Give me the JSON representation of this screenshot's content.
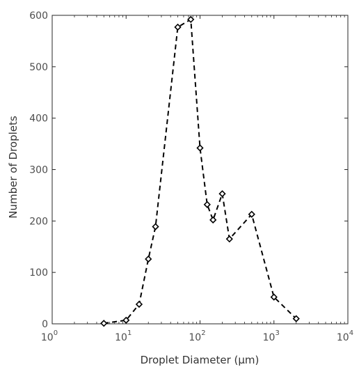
{
  "chart_data": {
    "type": "line",
    "title": "",
    "xlabel": "Droplet Diameter (μm)",
    "ylabel": "Number of Droplets",
    "xscale": "log",
    "xlim": [
      1,
      10000
    ],
    "ylim": [
      0,
      600
    ],
    "xticks": [
      1,
      10,
      100,
      1000,
      10000
    ],
    "xtick_labels": [
      {
        "base": "10",
        "exp": "0"
      },
      {
        "base": "10",
        "exp": "1"
      },
      {
        "base": "10",
        "exp": "2"
      },
      {
        "base": "10",
        "exp": "3"
      },
      {
        "base": "10",
        "exp": "4"
      }
    ],
    "yticks": [
      0,
      100,
      200,
      300,
      400,
      500,
      600
    ],
    "ytick_labels": [
      "0",
      "100",
      "200",
      "300",
      "400",
      "500",
      "600"
    ],
    "grid": false,
    "line_style": "dashed",
    "marker": "diamond",
    "color": "#000000",
    "series": [
      {
        "x": [
          5,
          10,
          15,
          20,
          25,
          50,
          75,
          100,
          125,
          150,
          200,
          250,
          500,
          1000,
          2000
        ],
        "y": [
          1,
          7,
          38,
          126,
          189,
          577,
          592,
          342,
          232,
          202,
          253,
          165,
          213,
          52,
          10
        ]
      }
    ]
  }
}
